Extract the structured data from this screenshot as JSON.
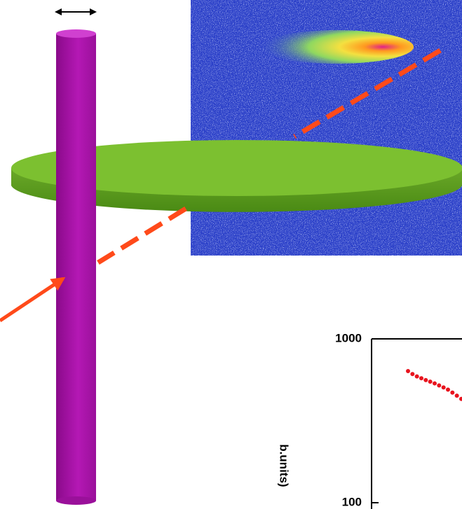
{
  "inset_plot": {
    "y_axis_label": "b.units)",
    "yscale": "log",
    "ylim": [
      92,
      1000
    ],
    "yticks": [
      1000,
      100
    ],
    "point_color": "#e8141e",
    "values": [
      636,
      610,
      590,
      575,
      560,
      548,
      535,
      520,
      505,
      490,
      470,
      450,
      430
    ]
  }
}
